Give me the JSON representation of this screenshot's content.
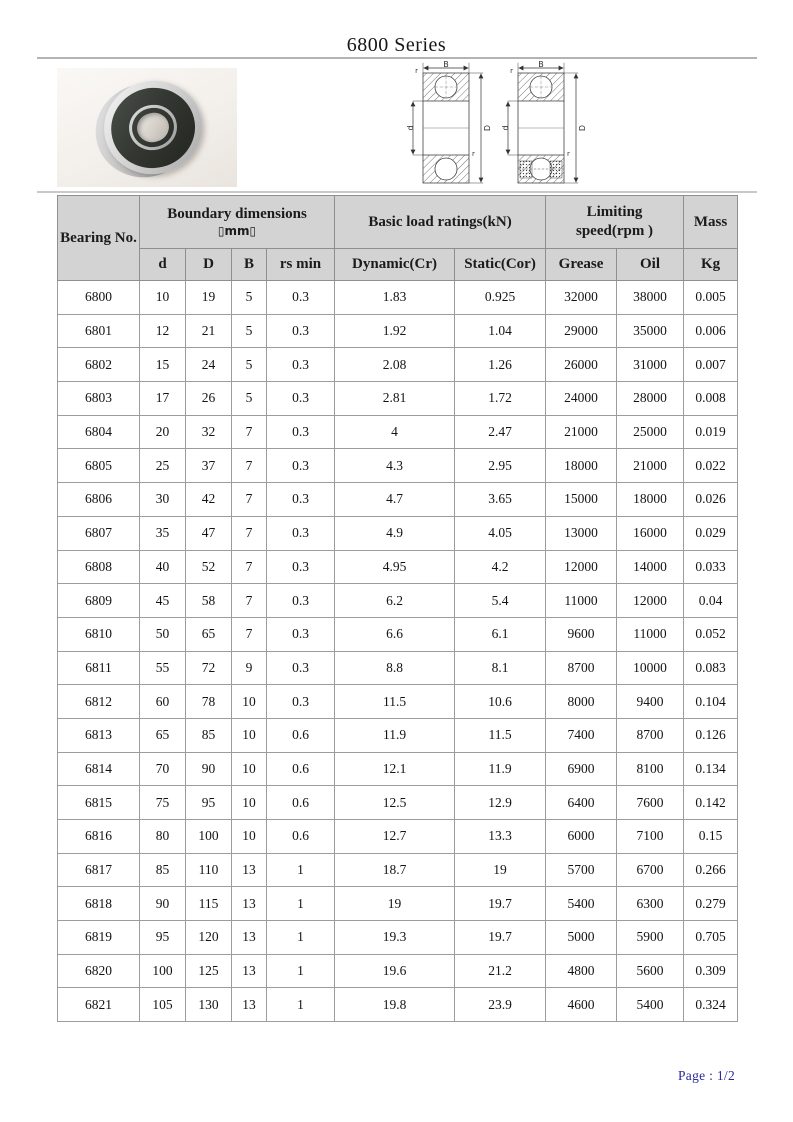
{
  "page": {
    "title": "6800 Series",
    "footer_page_label": "Page : 1/2"
  },
  "diagrams": {
    "b_label": "B",
    "d_label": "d",
    "outer_d_label": "D",
    "r_label": "r"
  },
  "table": {
    "header": {
      "bearing_no": "Bearing No.",
      "boundary_dimensions_line1": "Boundary dimensions",
      "boundary_dimensions_line2": "▯mm▯",
      "basic_load_ratings": "Basic load ratings(kN)",
      "limiting_speed_line1": "Limiting",
      "limiting_speed_line2": "speed(rpm )",
      "mass": "Mass",
      "sub_columns": [
        "d",
        "D",
        "B",
        "rs min",
        "Dynamic(Cr)",
        "Static(Cor)",
        "Grease",
        "Oil",
        "Kg"
      ]
    },
    "rows": [
      [
        "6800",
        "10",
        "19",
        "5",
        "0.3",
        "1.83",
        "0.925",
        "32000",
        "38000",
        "0.005"
      ],
      [
        "6801",
        "12",
        "21",
        "5",
        "0.3",
        "1.92",
        "1.04",
        "29000",
        "35000",
        "0.006"
      ],
      [
        "6802",
        "15",
        "24",
        "5",
        "0.3",
        "2.08",
        "1.26",
        "26000",
        "31000",
        "0.007"
      ],
      [
        "6803",
        "17",
        "26",
        "5",
        "0.3",
        "2.81",
        "1.72",
        "24000",
        "28000",
        "0.008"
      ],
      [
        "6804",
        "20",
        "32",
        "7",
        "0.3",
        "4",
        "2.47",
        "21000",
        "25000",
        "0.019"
      ],
      [
        "6805",
        "25",
        "37",
        "7",
        "0.3",
        "4.3",
        "2.95",
        "18000",
        "21000",
        "0.022"
      ],
      [
        "6806",
        "30",
        "42",
        "7",
        "0.3",
        "4.7",
        "3.65",
        "15000",
        "18000",
        "0.026"
      ],
      [
        "6807",
        "35",
        "47",
        "7",
        "0.3",
        "4.9",
        "4.05",
        "13000",
        "16000",
        "0.029"
      ],
      [
        "6808",
        "40",
        "52",
        "7",
        "0.3",
        "4.95",
        "4.2",
        "12000",
        "14000",
        "0.033"
      ],
      [
        "6809",
        "45",
        "58",
        "7",
        "0.3",
        "6.2",
        "5.4",
        "11000",
        "12000",
        "0.04"
      ],
      [
        "6810",
        "50",
        "65",
        "7",
        "0.3",
        "6.6",
        "6.1",
        "9600",
        "11000",
        "0.052"
      ],
      [
        "6811",
        "55",
        "72",
        "9",
        "0.3",
        "8.8",
        "8.1",
        "8700",
        "10000",
        "0.083"
      ],
      [
        "6812",
        "60",
        "78",
        "10",
        "0.3",
        "11.5",
        "10.6",
        "8000",
        "9400",
        "0.104"
      ],
      [
        "6813",
        "65",
        "85",
        "10",
        "0.6",
        "11.9",
        "11.5",
        "7400",
        "8700",
        "0.126"
      ],
      [
        "6814",
        "70",
        "90",
        "10",
        "0.6",
        "12.1",
        "11.9",
        "6900",
        "8100",
        "0.134"
      ],
      [
        "6815",
        "75",
        "95",
        "10",
        "0.6",
        "12.5",
        "12.9",
        "6400",
        "7600",
        "0.142"
      ],
      [
        "6816",
        "80",
        "100",
        "10",
        "0.6",
        "12.7",
        "13.3",
        "6000",
        "7100",
        "0.15"
      ],
      [
        "6817",
        "85",
        "110",
        "13",
        "1",
        "18.7",
        "19",
        "5700",
        "6700",
        "0.266"
      ],
      [
        "6818",
        "90",
        "115",
        "13",
        "1",
        "19",
        "19.7",
        "5400",
        "6300",
        "0.279"
      ],
      [
        "6819",
        "95",
        "120",
        "13",
        "1",
        "19.3",
        "19.7",
        "5000",
        "5900",
        "0.705"
      ],
      [
        "6820",
        "100",
        "125",
        "13",
        "1",
        "19.6",
        "21.2",
        "4800",
        "5600",
        "0.309"
      ],
      [
        "6821",
        "105",
        "130",
        "13",
        "1",
        "19.8",
        "23.9",
        "4600",
        "5400",
        "0.324"
      ]
    ]
  },
  "colors": {
    "header_bg": "#d3d3d3",
    "grid_border": "#9c9c9c",
    "footer_text": "#29299b"
  }
}
